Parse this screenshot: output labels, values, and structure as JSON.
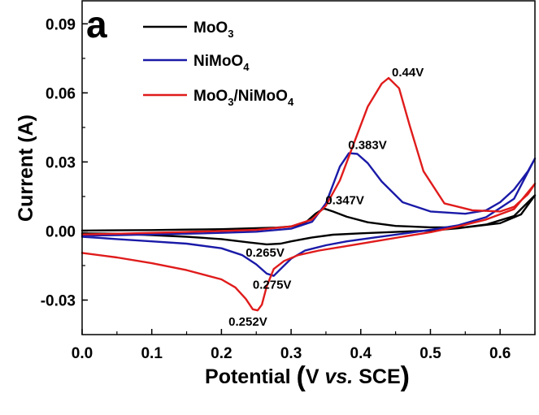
{
  "chart_data": {
    "type": "line",
    "panel_label": "a",
    "xlabel": {
      "main": "Potential ",
      "paren_open": "(",
      "before": "V ",
      "italic": "vs.",
      "after": " SCE",
      "paren_close": ")"
    },
    "ylabel": "Current (A)",
    "xlim": [
      0.0,
      0.65
    ],
    "ylim": [
      -0.045,
      0.1
    ],
    "xticks": [
      {
        "value": 0.0,
        "label": "0.0"
      },
      {
        "value": 0.1,
        "label": "0.1"
      },
      {
        "value": 0.2,
        "label": "0.2"
      },
      {
        "value": 0.3,
        "label": "0.3"
      },
      {
        "value": 0.4,
        "label": "0.4"
      },
      {
        "value": 0.5,
        "label": "0.5"
      },
      {
        "value": 0.6,
        "label": "0.6"
      }
    ],
    "yticks": [
      {
        "value": -0.03,
        "label": "-0.03"
      },
      {
        "value": 0.0,
        "label": "0.00"
      },
      {
        "value": 0.03,
        "label": "0.03"
      },
      {
        "value": 0.06,
        "label": "0.06"
      },
      {
        "value": 0.09,
        "label": "0.09"
      }
    ],
    "grid": false,
    "legend_position": "top-left",
    "series": [
      {
        "name": "MoO",
        "name_sub": "3",
        "color": "#000000",
        "x": [
          0.0,
          0.05,
          0.1,
          0.15,
          0.2,
          0.25,
          0.28,
          0.3,
          0.32,
          0.335,
          0.347,
          0.36,
          0.38,
          0.41,
          0.45,
          0.5,
          0.55,
          0.6,
          0.63,
          0.65,
          0.65,
          0.62,
          0.58,
          0.54,
          0.5,
          0.45,
          0.4,
          0.36,
          0.33,
          0.3,
          0.285,
          0.265,
          0.24,
          0.2,
          0.15,
          0.1,
          0.05,
          0.0
        ],
        "y": [
          0.0002,
          0.0003,
          0.0004,
          0.0006,
          0.0008,
          0.0012,
          0.0015,
          0.002,
          0.0035,
          0.0075,
          0.0098,
          0.0085,
          0.0062,
          0.0038,
          0.0022,
          0.0016,
          0.0016,
          0.0034,
          0.0072,
          0.0155,
          0.0155,
          0.0065,
          0.0028,
          0.0012,
          0.0002,
          -0.0004,
          -0.001,
          -0.0016,
          -0.0028,
          -0.0045,
          -0.0055,
          -0.0058,
          -0.005,
          -0.0035,
          -0.0025,
          -0.0018,
          -0.0012,
          -0.001
        ]
      },
      {
        "name": "NiMoO",
        "name_sub": "4",
        "color": "#1a1aa8",
        "x": [
          0.0,
          0.05,
          0.1,
          0.15,
          0.2,
          0.25,
          0.3,
          0.33,
          0.35,
          0.36,
          0.37,
          0.383,
          0.395,
          0.41,
          0.43,
          0.46,
          0.5,
          0.55,
          0.58,
          0.6,
          0.62,
          0.64,
          0.65,
          0.65,
          0.62,
          0.58,
          0.54,
          0.5,
          0.46,
          0.42,
          0.38,
          0.35,
          0.32,
          0.3,
          0.285,
          0.275,
          0.265,
          0.25,
          0.23,
          0.2,
          0.15,
          0.1,
          0.05,
          0.0
        ],
        "y": [
          -0.002,
          -0.0018,
          -0.0015,
          -0.0012,
          -0.0008,
          -0.0003,
          0.001,
          0.004,
          0.012,
          0.02,
          0.028,
          0.0338,
          0.0335,
          0.0295,
          0.0215,
          0.0125,
          0.0085,
          0.0075,
          0.009,
          0.0125,
          0.018,
          0.026,
          0.0315,
          0.0315,
          0.014,
          0.006,
          0.0025,
          0.0005,
          -0.0012,
          -0.0028,
          -0.0045,
          -0.0062,
          -0.0085,
          -0.012,
          -0.0165,
          -0.0195,
          -0.0185,
          -0.0145,
          -0.0105,
          -0.0075,
          -0.0055,
          -0.0045,
          -0.0035,
          -0.0025
        ]
      },
      {
        "name_parts": [
          "MoO",
          "3",
          "/NiMoO",
          "4"
        ],
        "color": "#e01b1b",
        "x": [
          0.0,
          0.05,
          0.1,
          0.15,
          0.2,
          0.25,
          0.3,
          0.33,
          0.35,
          0.37,
          0.39,
          0.41,
          0.43,
          0.44,
          0.455,
          0.47,
          0.49,
          0.52,
          0.56,
          0.6,
          0.62,
          0.64,
          0.65,
          0.65,
          0.62,
          0.58,
          0.54,
          0.5,
          0.46,
          0.42,
          0.38,
          0.34,
          0.31,
          0.29,
          0.275,
          0.265,
          0.258,
          0.252,
          0.245,
          0.235,
          0.22,
          0.2,
          0.15,
          0.1,
          0.05,
          0.0
        ],
        "y": [
          -0.0015,
          -0.0012,
          -0.0008,
          -0.0004,
          0.0,
          0.0005,
          0.002,
          0.005,
          0.011,
          0.022,
          0.038,
          0.054,
          0.064,
          0.0665,
          0.062,
          0.046,
          0.026,
          0.012,
          0.009,
          0.0085,
          0.0105,
          0.016,
          0.0205,
          0.0205,
          0.0095,
          0.005,
          0.002,
          -0.0005,
          -0.0025,
          -0.0045,
          -0.0065,
          -0.0085,
          -0.0105,
          -0.013,
          -0.0165,
          -0.024,
          -0.032,
          -0.0345,
          -0.034,
          -0.0295,
          -0.0245,
          -0.021,
          -0.017,
          -0.014,
          -0.0115,
          -0.0095
        ]
      }
    ],
    "annotations": [
      {
        "text": "0.44V",
        "x": 0.44,
        "y": 0.0665
      },
      {
        "text": "0.383V",
        "x": 0.383,
        "y": 0.0338
      },
      {
        "text": "0.347V",
        "x": 0.347,
        "y": 0.0098
      },
      {
        "text": "0.265V",
        "x": 0.265,
        "y": -0.0058
      },
      {
        "text": "0.275V",
        "x": 0.275,
        "y": -0.0195
      },
      {
        "text": "0.252V",
        "x": 0.252,
        "y": -0.0345
      }
    ]
  }
}
